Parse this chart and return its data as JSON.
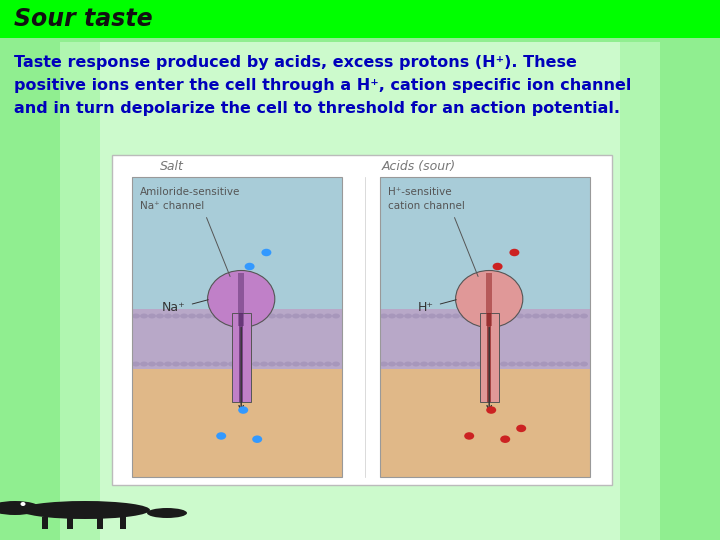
{
  "title": "Sour taste",
  "title_bg": "#00ff00",
  "title_color": "#111111",
  "title_fontsize": 17,
  "body_text_color": "#0000bb",
  "body_text_fontsize": 11.5,
  "slide_bg_left": "#b8ffb8",
  "slide_bg_right": "#90ee90",
  "body_bg": "#e8ffe8",
  "diagram_outer_bg": "#f0fff0",
  "diagram_border": "#aaaaaa",
  "sky_color": "#b0d8e0",
  "membrane_color": "#c0b0d0",
  "intra_color": "#e8c8a0",
  "channel_left_color": "#c080c8",
  "channel_right_color": "#e09898",
  "ion_left_color": "#3399ff",
  "ion_right_color": "#cc2222",
  "label_color": "#777777",
  "arrow_color": "#444444",
  "text_color_diagram": "#555555",
  "line1": "Taste response produced by acids, excess protons (H⁺). These",
  "line2": "positive ions enter the cell through a H⁺, cation specific ion channel",
  "line3": "and in turn depolarize the cell to threshold for an action potential.",
  "left_label": "Salt",
  "right_label": "Acids (sour)",
  "left_channel_line1": "Amiloride-sensitive",
  "left_channel_line2": "Na⁺ channel",
  "right_channel_line1": "H⁺-sensitive",
  "right_channel_line2": "cation channel",
  "left_ion_label": "Na⁺",
  "right_ion_label": "H⁺"
}
